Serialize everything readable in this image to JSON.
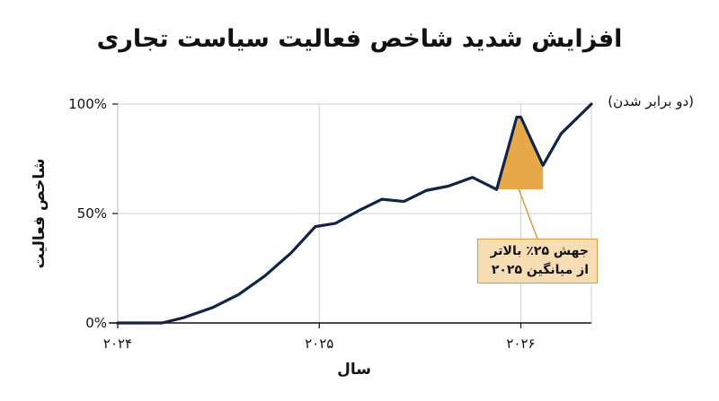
{
  "chart_data": {
    "type": "line",
    "title": "افزایش شدید شاخص فعالیت سیاست تجاری",
    "xlabel": "سال",
    "ylabel": "شاخص فعالیت",
    "x_tick_labels": [
      "۲۰۲۴",
      "۲۰۲۵",
      "۲۰۲۶"
    ],
    "x_ticks": [
      2024,
      2025,
      2026
    ],
    "y_tick_labels": [
      "0%",
      "50%",
      "100%"
    ],
    "y_ticks": [
      0,
      50,
      100
    ],
    "xlim": [
      2024,
      2026.35
    ],
    "ylim": [
      0,
      100
    ],
    "grid": true,
    "series": [
      {
        "color": "#0f2447",
        "x": [
          2024.0,
          2024.22,
          2024.33,
          2024.47,
          2024.6,
          2024.73,
          2024.86,
          2024.98,
          2025.08,
          2025.2,
          2025.31,
          2025.42,
          2025.53,
          2025.64,
          2025.76,
          2025.88,
          2025.98,
          2026.0,
          2026.11,
          2026.2,
          2026.35
        ],
        "y": [
          0,
          0,
          2.5,
          7,
          13,
          21.5,
          32,
          44,
          45.5,
          51.5,
          56.5,
          55.5,
          60.5,
          62.5,
          66.5,
          61,
          94,
          94,
          72,
          86.5,
          100
        ]
      }
    ],
    "annotations": [
      {
        "type": "shaded-region",
        "color": "#e8a84a",
        "x": [
          2025.88,
          2025.99,
          2026.11
        ],
        "y_bottom": 61,
        "y_top": [
          61,
          94,
          72
        ]
      },
      {
        "type": "label",
        "text": "(دو برابر شدن)",
        "x": 2026.35,
        "y": 100
      },
      {
        "type": "callout",
        "lines": [
          "جهش ۲۵٪ بالاتر",
          "از میانگین ۲۰۲۵"
        ],
        "points_to_x": 2025.99,
        "points_to_y": 61
      }
    ]
  }
}
